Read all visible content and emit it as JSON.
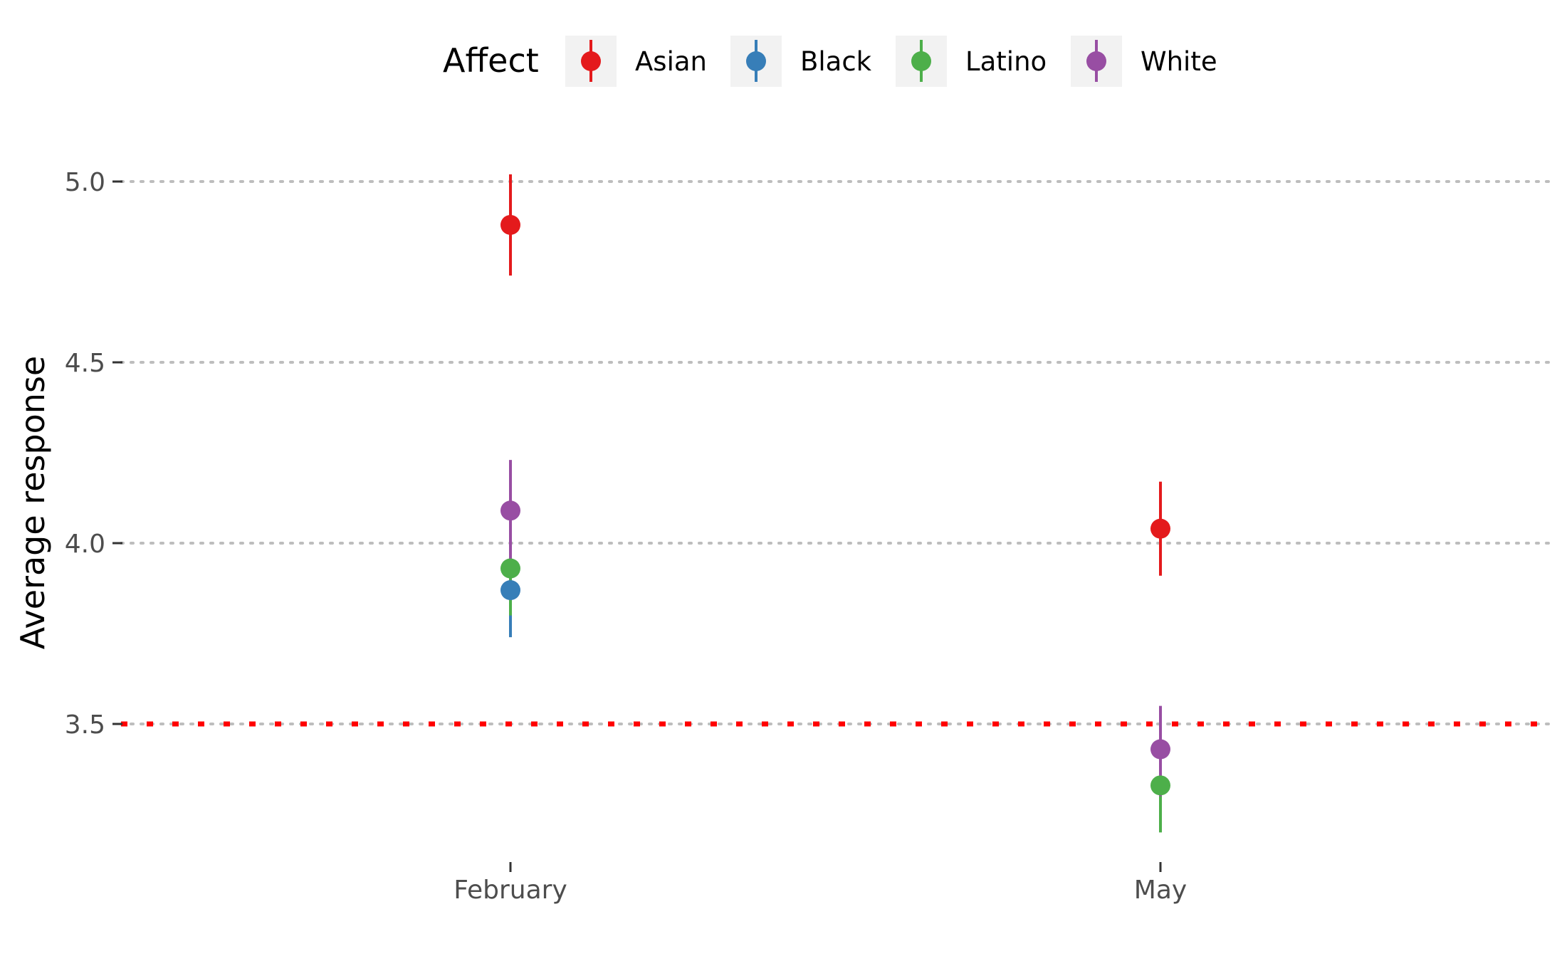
{
  "chart_data": {
    "type": "scatter",
    "subtype": "pointrange",
    "title": "",
    "xlabel": "",
    "ylabel": "Average response",
    "categories": [
      "February",
      "May"
    ],
    "yticks": [
      3.5,
      4.0,
      4.5,
      5.0
    ],
    "ytick_labels": [
      "3.5",
      "4.0",
      "4.5",
      "5.0"
    ],
    "ylim": [
      3.13,
      5.05
    ],
    "grid": "horizontal dotted",
    "legend": {
      "title": "Affect",
      "placement": "top",
      "entries": [
        "Asian",
        "Black",
        "Latino",
        "White"
      ]
    },
    "reference_line": {
      "y": 3.5,
      "color": "#ff0000",
      "style": "dotted"
    },
    "series": [
      {
        "name": "Asian",
        "color": "#e41a1c",
        "points": [
          {
            "x": "February",
            "y": 4.88,
            "low": 4.74,
            "high": 5.02
          },
          {
            "x": "May",
            "y": 4.04,
            "low": 3.91,
            "high": 4.17
          }
        ]
      },
      {
        "name": "Black",
        "color": "#377eb8",
        "points": [
          {
            "x": "February",
            "y": 3.87,
            "low": 3.74,
            "high": 4.0
          }
        ]
      },
      {
        "name": "Latino",
        "color": "#4daf4a",
        "points": [
          {
            "x": "February",
            "y": 3.93,
            "low": 3.8,
            "high": 4.06
          },
          {
            "x": "May",
            "y": 3.33,
            "low": 3.2,
            "high": 3.46
          }
        ]
      },
      {
        "name": "White",
        "color": "#984ea3",
        "points": [
          {
            "x": "February",
            "y": 4.09,
            "low": 3.95,
            "high": 4.23
          },
          {
            "x": "May",
            "y": 3.43,
            "low": 3.3,
            "high": 3.55
          }
        ]
      }
    ]
  }
}
